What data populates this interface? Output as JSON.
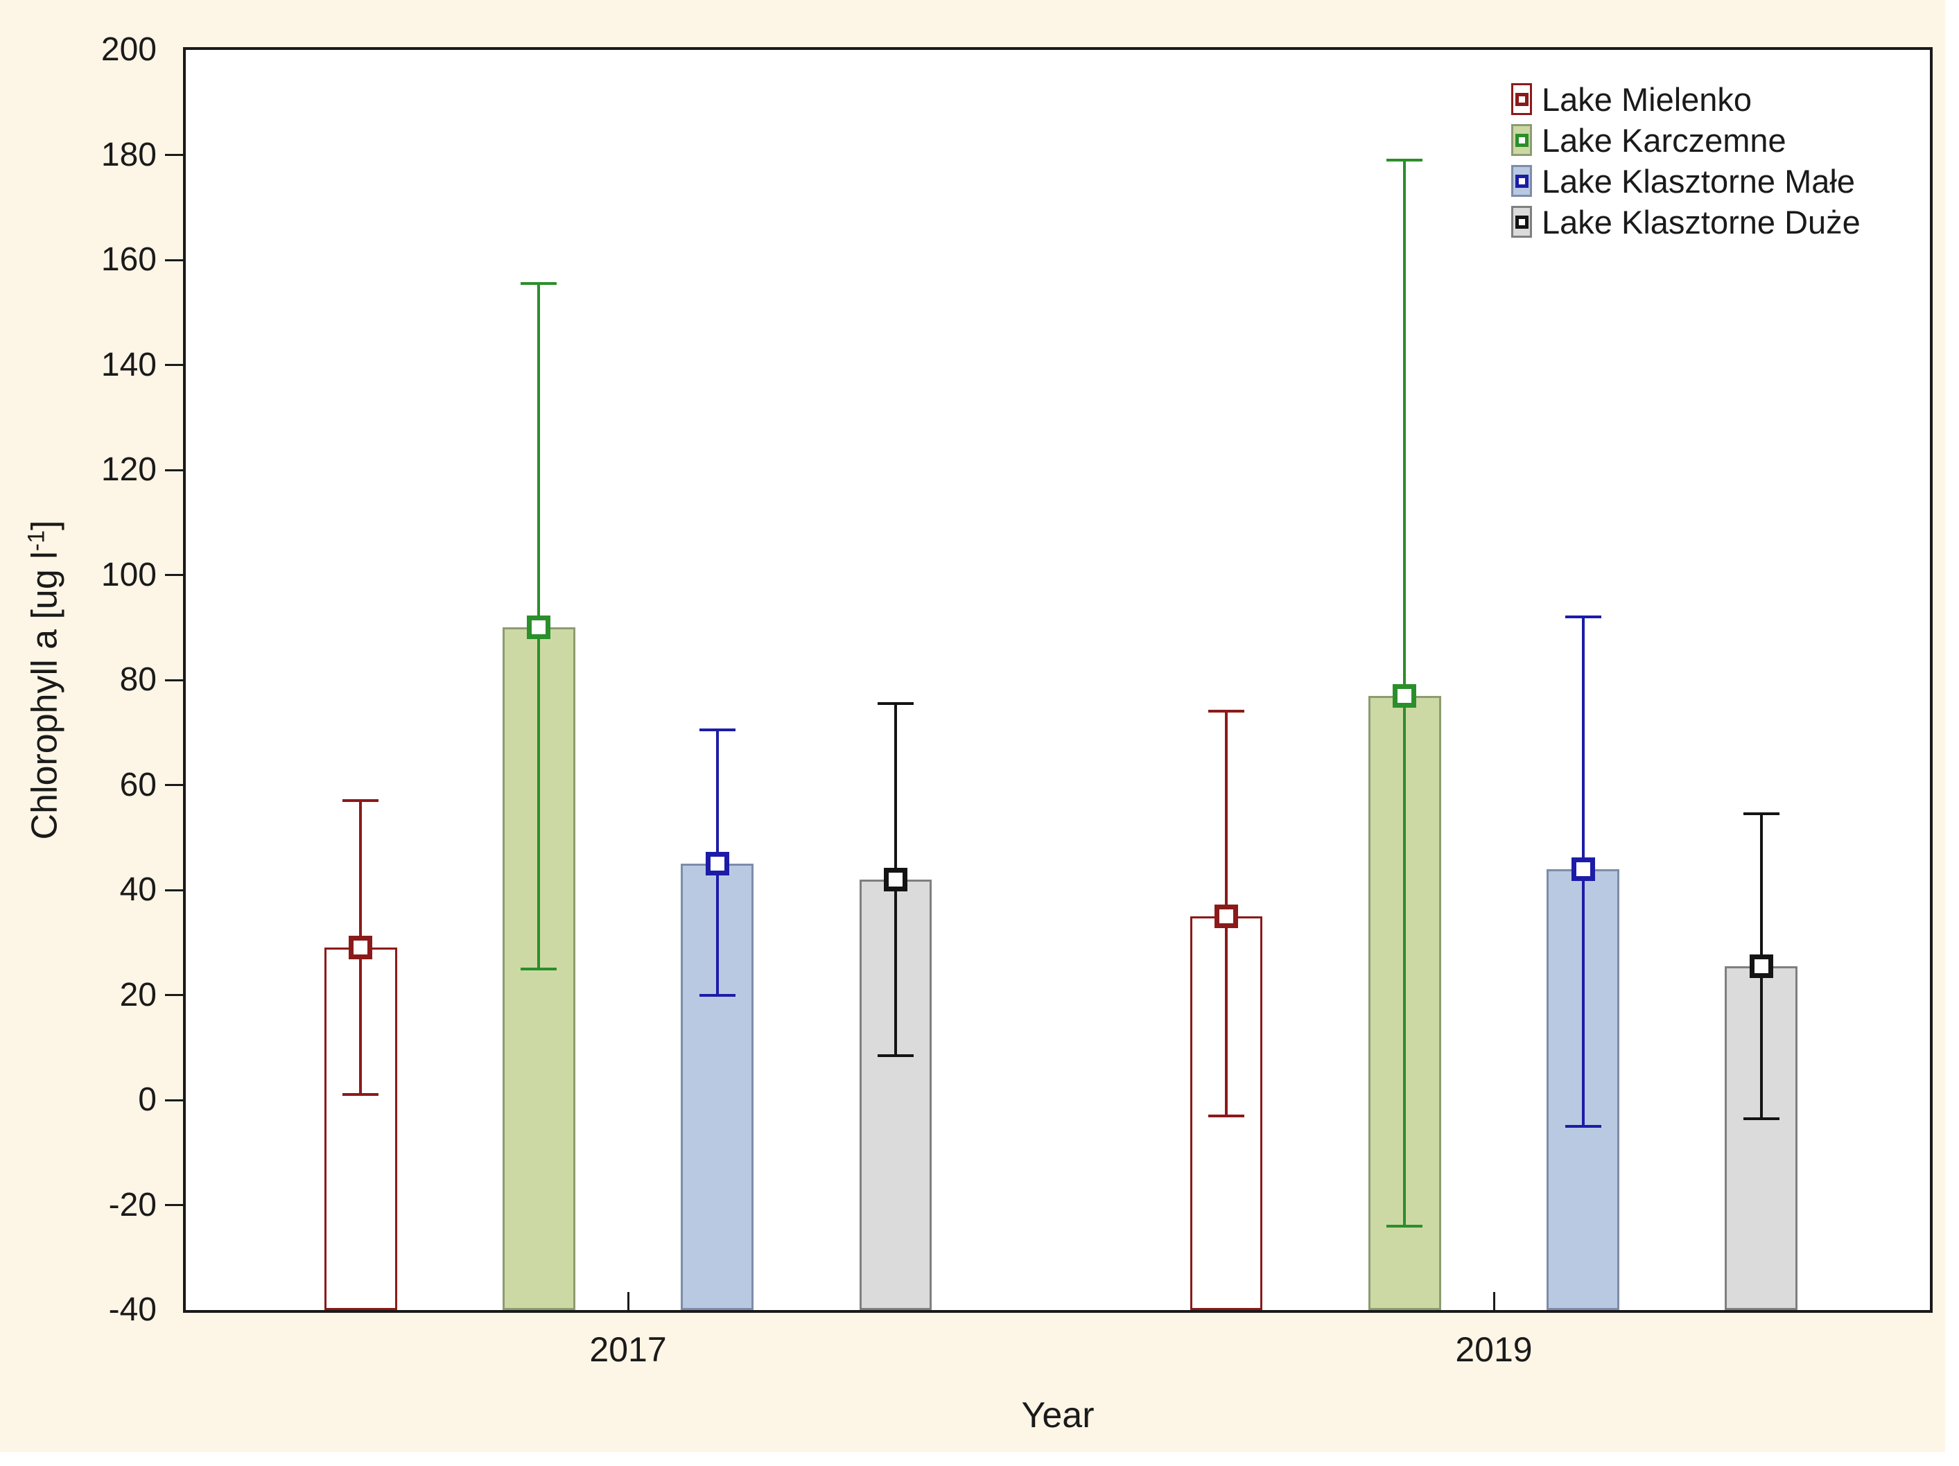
{
  "figure": {
    "background_color": "#FDF5E6",
    "plot_background": "#FFFFFF",
    "frame_color": "#1A1A1A"
  },
  "chart_data": {
    "type": "bar",
    "title": "",
    "xlabel": "Year",
    "ylabel": "Chlorophyll a [ug l⁻¹]",
    "ylabel_prefix": "Chlorophyll a [ug l",
    "ylabel_sup": "-1",
    "ylabel_suffix": "]",
    "categories": [
      "2017",
      "2019"
    ],
    "ylim": [
      -40,
      200
    ],
    "ytick_step": 20,
    "ytick_labels": [
      "-40",
      "-20",
      "0",
      "20",
      "40",
      "60",
      "80",
      "100",
      "120",
      "140",
      "160",
      "180",
      "200"
    ],
    "grid": false,
    "legend_position": "top-right-inside",
    "error_bar_style": "mean-with-whiskers",
    "series": [
      {
        "name": "Lake Mielenko",
        "line_color": "#8B1A1A",
        "fill_color": "#FFFFFF",
        "bar_border_color": "#8B1A1A",
        "means": [
          29,
          35
        ],
        "ci_low": [
          1,
          -3
        ],
        "ci_high": [
          57,
          74
        ]
      },
      {
        "name": "Lake Karczemne",
        "line_color": "#2B8F2B",
        "fill_color": "#CDD9A4",
        "bar_border_color": "#8D9B72",
        "means": [
          90,
          77
        ],
        "ci_low": [
          25,
          -24
        ],
        "ci_high": [
          155.5,
          179
        ]
      },
      {
        "name": "Lake Klasztorne Małe",
        "line_color": "#1C1CA8",
        "fill_color": "#B8C9E1",
        "bar_border_color": "#7D8CA8",
        "means": [
          45,
          44
        ],
        "ci_low": [
          20,
          -5
        ],
        "ci_high": [
          70.5,
          92
        ]
      },
      {
        "name": "Lake Klasztorne Duże",
        "line_color": "#141414",
        "fill_color": "#DBDBDB",
        "bar_border_color": "#7F7F7F",
        "means": [
          42,
          25.5
        ],
        "ci_low": [
          8.5,
          -3.5
        ],
        "ci_high": [
          75.5,
          54.5
        ]
      }
    ],
    "layout": {
      "group_centers_frac": [
        0.2536,
        0.75
      ],
      "series_offsets_frac": [
        -0.1534,
        -0.0511,
        0.0511,
        0.1534
      ],
      "bar_width_frac": 0.0417
    }
  }
}
